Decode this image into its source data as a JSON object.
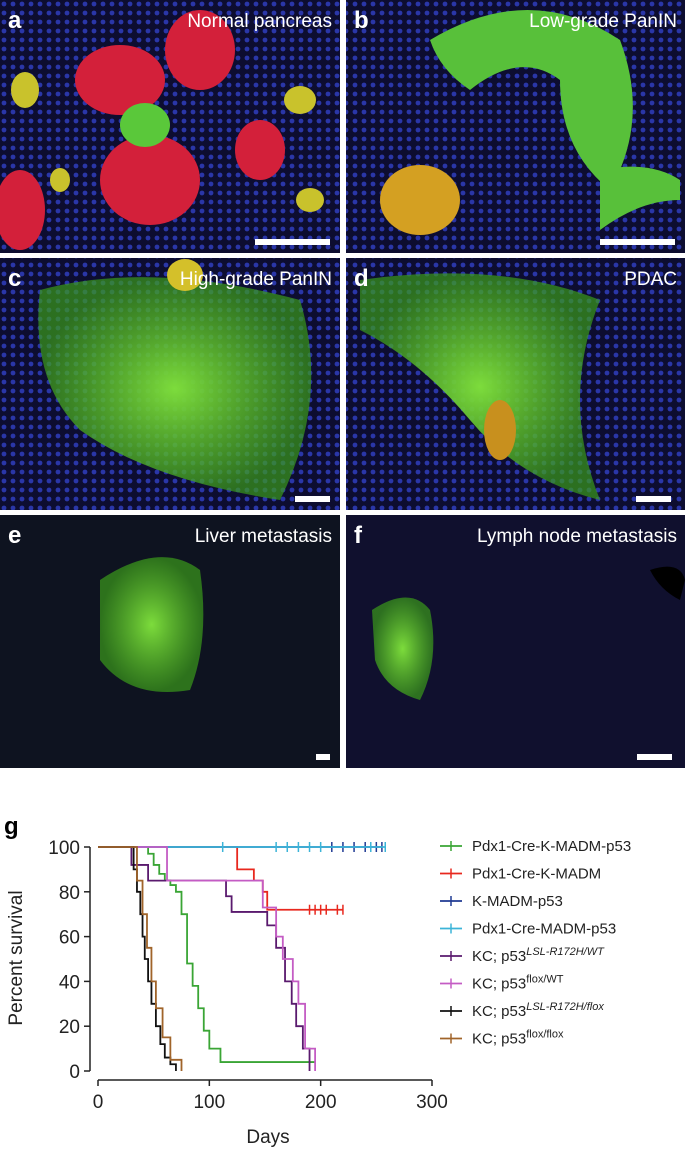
{
  "panels": [
    {
      "letter": "a",
      "label": "Normal pancreas"
    },
    {
      "letter": "b",
      "label": "Low-grade PanIN"
    },
    {
      "letter": "c",
      "label": "High-grade PanIN"
    },
    {
      "letter": "d",
      "label": "PDAC"
    },
    {
      "letter": "e",
      "label": "Liver metastasis"
    },
    {
      "letter": "f",
      "label": "Lymph node metastasis"
    }
  ],
  "chart_data": {
    "type": "line",
    "step": true,
    "panel_letter": "g",
    "xlabel": "Days",
    "ylabel": "Percent survival",
    "xlim": [
      0,
      300
    ],
    "xticks": [
      0,
      100,
      200,
      300
    ],
    "ylim": [
      0,
      100
    ],
    "yticks": [
      0,
      20,
      40,
      60,
      80,
      100
    ],
    "series": [
      {
        "name": "Pdx1-Cre-K-MADM-p53",
        "color": "#3aa535",
        "x": [
          0,
          45,
          50,
          55,
          60,
          65,
          70,
          75,
          80,
          85,
          90,
          95,
          100,
          110,
          195
        ],
        "values": [
          100,
          97,
          92,
          88,
          85,
          83,
          80,
          70,
          48,
          38,
          28,
          18,
          10,
          4,
          4
        ],
        "censored": []
      },
      {
        "name": "Pdx1-Cre-K-MADM",
        "color": "#e8281e",
        "x": [
          0,
          125,
          140,
          148,
          152,
          220
        ],
        "values": [
          100,
          90,
          85,
          80,
          72,
          72
        ],
        "censored": [
          190,
          195,
          200,
          205,
          215,
          220
        ]
      },
      {
        "name": "K-MADM-p53",
        "color": "#1f3a93",
        "x": [
          0,
          255
        ],
        "values": [
          100,
          100
        ],
        "censored": [
          210,
          220,
          230,
          240,
          250,
          255
        ]
      },
      {
        "name": "Pdx1-Cre-MADM-p53",
        "color": "#3cb4d8",
        "x": [
          0,
          258
        ],
        "values": [
          100,
          100
        ],
        "censored": [
          112,
          160,
          170,
          180,
          190,
          200,
          245,
          258
        ]
      },
      {
        "name": "KC; p53",
        "name_sup": "LSL-R172H/WT",
        "color": "#5a1a6e",
        "x": [
          0,
          30,
          45,
          110,
          115,
          120,
          152,
          160,
          168,
          174,
          178,
          184,
          190
        ],
        "values": [
          100,
          92,
          85,
          85,
          78,
          71,
          65,
          55,
          40,
          30,
          20,
          10,
          0
        ],
        "censored": []
      },
      {
        "name": "KC; p53",
        "name_sup": "flox/WT",
        "color": "#c45cc4",
        "x": [
          0,
          62,
          140,
          148,
          160,
          166,
          175,
          180,
          186,
          195
        ],
        "values": [
          100,
          85,
          85,
          73,
          60,
          50,
          40,
          30,
          10,
          0
        ],
        "censored": []
      },
      {
        "name": "KC; p53",
        "name_sup": "LSL-R172H/flox",
        "color": "#111111",
        "x": [
          0,
          32,
          35,
          38,
          40,
          42,
          45,
          48,
          52,
          56,
          60,
          65,
          70
        ],
        "values": [
          100,
          90,
          80,
          70,
          60,
          50,
          40,
          30,
          20,
          12,
          6,
          3,
          0
        ],
        "censored": []
      },
      {
        "name": "KC; p53",
        "name_sup": "flox/flox",
        "color": "#a0642a",
        "x": [
          0,
          35,
          40,
          44,
          48,
          52,
          58,
          65,
          75
        ],
        "values": [
          100,
          85,
          70,
          55,
          40,
          28,
          15,
          5,
          0
        ],
        "censored": []
      }
    ]
  }
}
